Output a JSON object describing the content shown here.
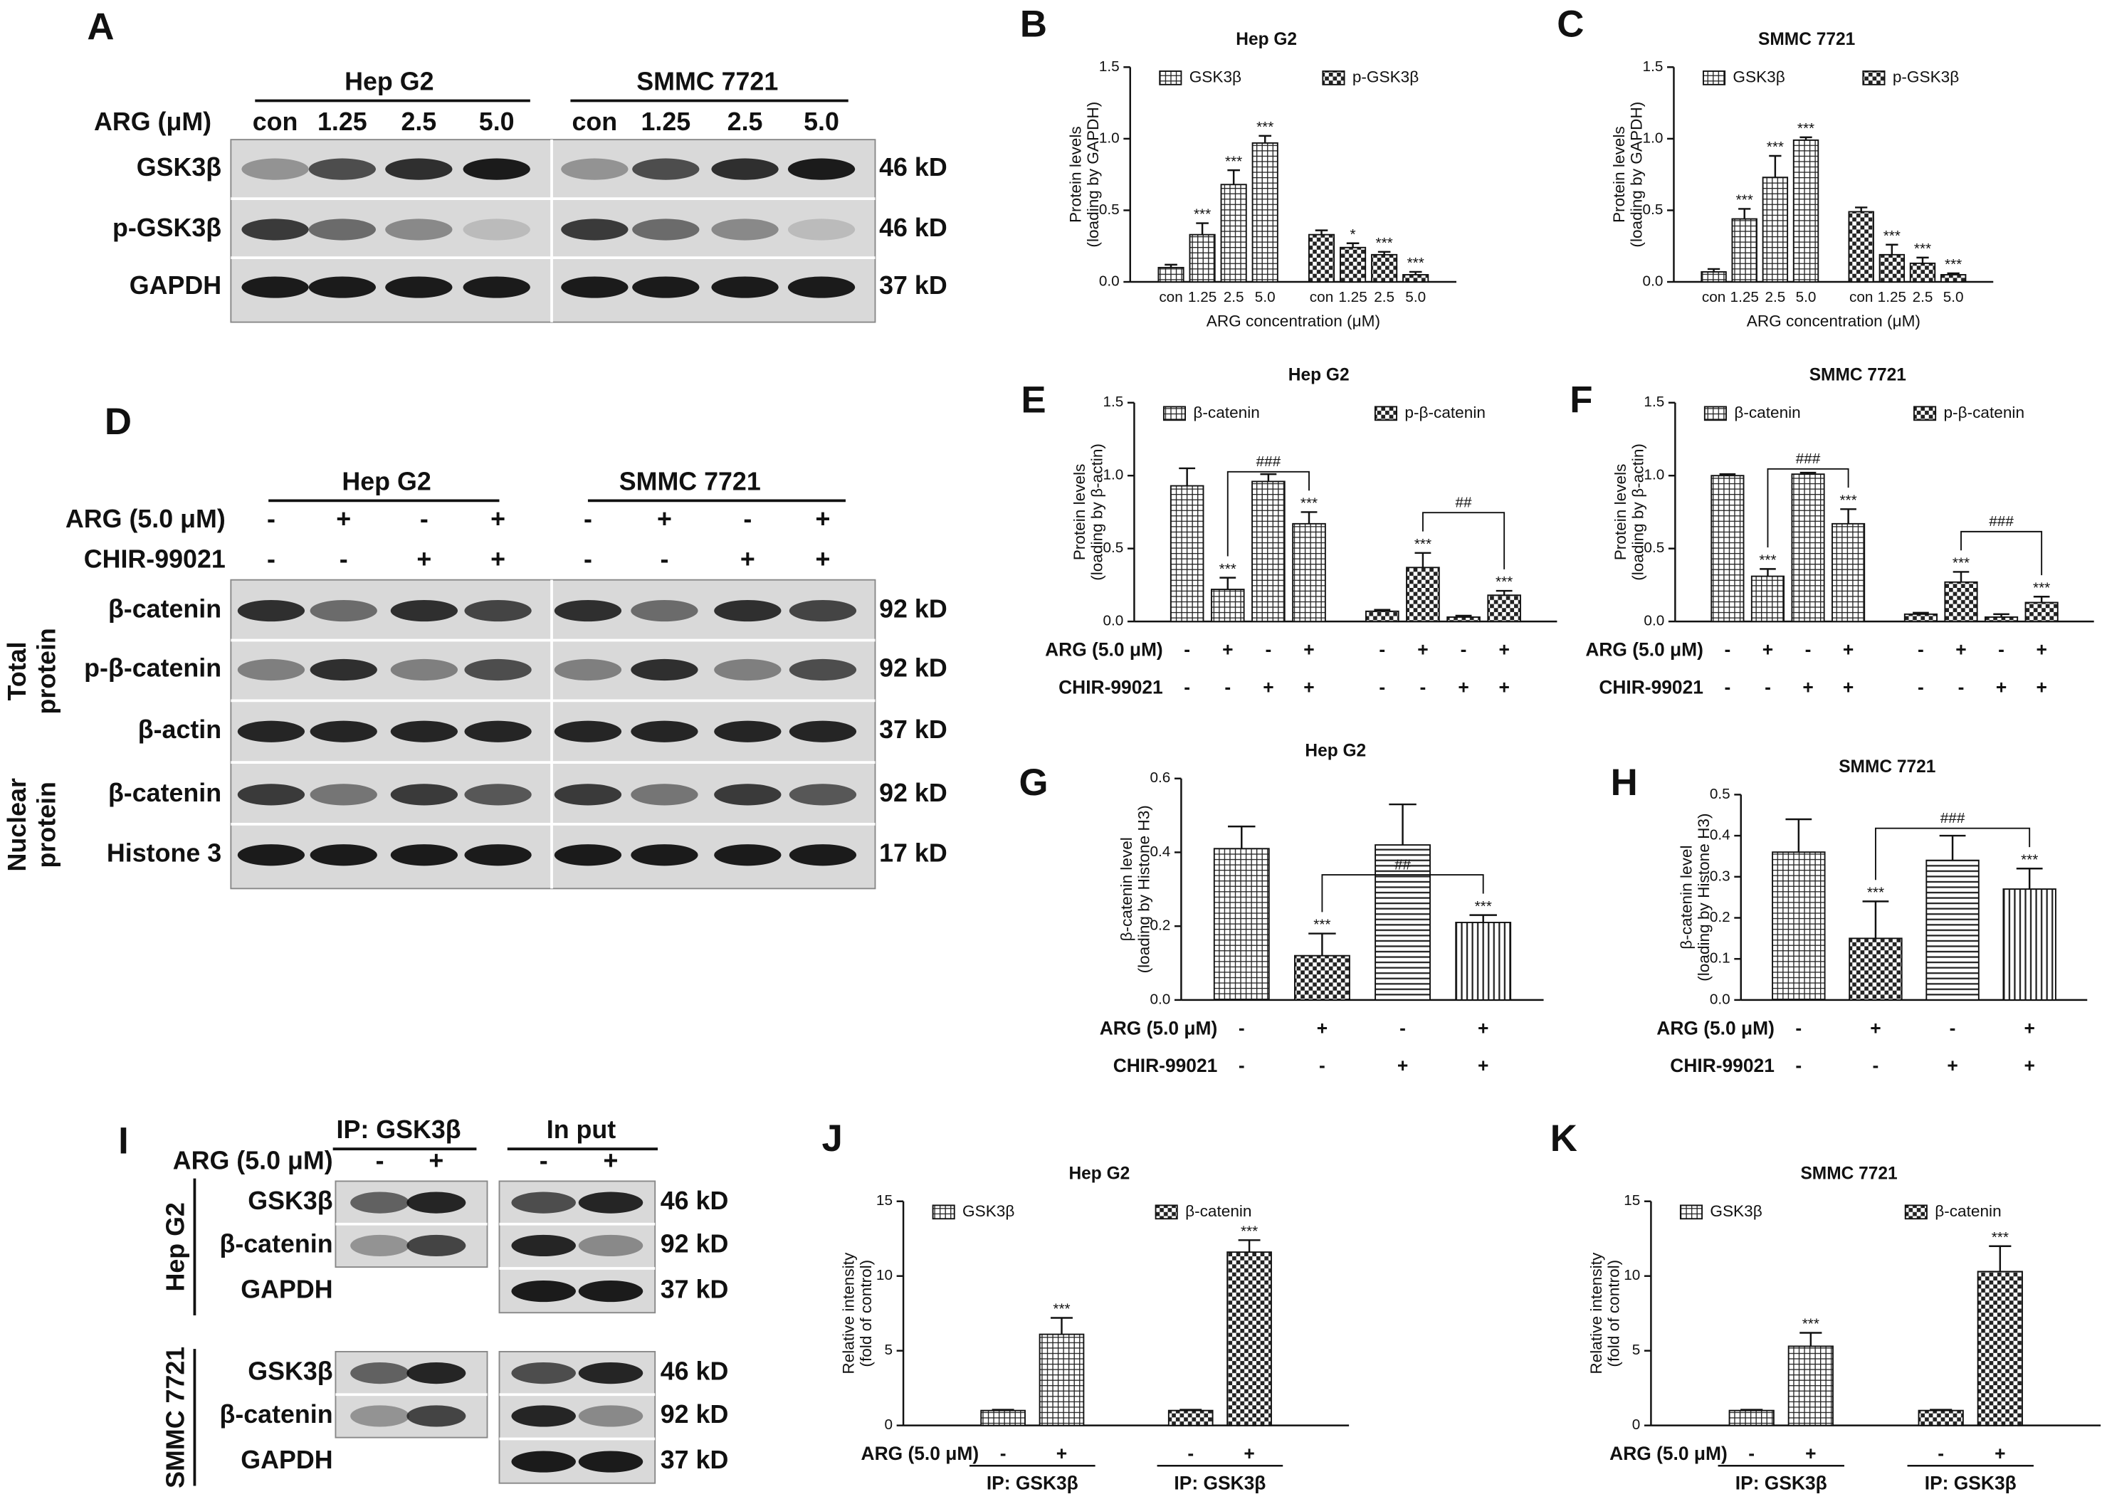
{
  "blots": {
    "A": {
      "panel": "A",
      "groups": [
        "Hep G2",
        "SMMC 7721"
      ],
      "dose_label": "ARG (μM)",
      "lanes": [
        "con",
        "1.25",
        "2.5",
        "5.0"
      ],
      "rows": [
        {
          "label": "GSK3β",
          "size": "46 kD"
        },
        {
          "label": "p-GSK3β",
          "size": "46 kD"
        },
        {
          "label": "GAPDH",
          "size": "37 kD"
        }
      ]
    },
    "D": {
      "panel": "D",
      "groups": [
        "Hep G2",
        "SMMC 7721"
      ],
      "conditions": [
        {
          "label": "ARG (5.0 μM)",
          "signs": [
            "-",
            "+",
            "-",
            "+"
          ]
        },
        {
          "label": "CHIR-99021",
          "signs": [
            "-",
            "-",
            "+",
            "+"
          ]
        }
      ],
      "sections": [
        {
          "label": [
            "Total",
            "protein"
          ],
          "rows": [
            {
              "label": "β-catenin",
              "size": "92 kD"
            },
            {
              "label": "p-β-catenin",
              "size": "92 kD"
            },
            {
              "label": "β-actin",
              "size": "37 kD"
            }
          ]
        },
        {
          "label": [
            "Nuclear",
            "protein"
          ],
          "rows": [
            {
              "label": "β-catenin",
              "size": "92 kD"
            },
            {
              "label": "Histone 3",
              "size": "17 kD"
            }
          ]
        }
      ]
    },
    "I": {
      "panel": "I",
      "groups": [
        "IP: GSK3β",
        "In put"
      ],
      "conditions": [
        {
          "label": "ARG (5.0 μM)",
          "signs": [
            "-",
            "+"
          ]
        }
      ],
      "cell_lines": [
        {
          "label": "Hep G2",
          "rows": [
            {
              "label": "GSK3β",
              "size": "46 kD"
            },
            {
              "label": "β-catenin",
              "size": "92 kD"
            },
            {
              "label": "GAPDH",
              "size": "37 kD"
            }
          ]
        },
        {
          "label": "SMMC 7721",
          "rows": [
            {
              "label": "GSK3β",
              "size": "46 kD"
            },
            {
              "label": "β-catenin",
              "size": "92 kD"
            },
            {
              "label": "GAPDH",
              "size": "37 kD"
            }
          ]
        }
      ]
    }
  },
  "chart_data": [
    {
      "type": "bar",
      "panel": "B",
      "title": "Hep G2",
      "ylabel": [
        "Protein levels",
        "(loading by GAPDH)"
      ],
      "xlabel": "ARG concentration (μM)",
      "grouping": "series",
      "legend": "top",
      "categories": [
        "con",
        "1.25",
        "2.5",
        "5.0"
      ],
      "ylim": [
        0,
        1.5
      ],
      "yticks": [
        {
          "value": 0,
          "label": "0.0"
        },
        0.5,
        {
          "value": 1,
          "label": "1.0"
        },
        1.5
      ],
      "series": [
        {
          "name": "GSK3β",
          "pattern": "grid",
          "values": [
            0.1,
            0.33,
            0.68,
            0.97
          ],
          "errors": [
            0.02,
            0.08,
            0.1,
            0.05
          ],
          "annotations": [
            null,
            "***",
            "***",
            "***"
          ]
        },
        {
          "name": "p-GSK3β",
          "pattern": "checker",
          "values": [
            0.33,
            0.24,
            0.19,
            0.05
          ],
          "errors": [
            0.03,
            0.03,
            0.02,
            0.02
          ],
          "annotations": [
            null,
            "*",
            "***",
            "***"
          ]
        }
      ]
    },
    {
      "type": "bar",
      "panel": "C",
      "title": "SMMC 7721",
      "ylabel": [
        "Protein levels",
        "(loading by GAPDH)"
      ],
      "xlabel": "ARG concentration (μM)",
      "grouping": "series",
      "legend": "top",
      "categories": [
        "con",
        "1.25",
        "2.5",
        "5.0"
      ],
      "ylim": [
        0,
        1.5
      ],
      "yticks": [
        {
          "value": 0,
          "label": "0.0"
        },
        0.5,
        {
          "value": 1,
          "label": "1.0"
        },
        1.5
      ],
      "series": [
        {
          "name": "GSK3β",
          "pattern": "grid",
          "values": [
            0.07,
            0.44,
            0.73,
            0.99
          ],
          "errors": [
            0.02,
            0.07,
            0.15,
            0.02
          ],
          "annotations": [
            null,
            "***",
            "***",
            "***"
          ]
        },
        {
          "name": "p-GSK3β",
          "pattern": "checker",
          "values": [
            0.49,
            0.19,
            0.13,
            0.05
          ],
          "errors": [
            0.03,
            0.07,
            0.04,
            0.01
          ],
          "annotations": [
            null,
            "***",
            "***",
            "***"
          ]
        }
      ]
    },
    {
      "type": "bar",
      "panel": "E",
      "title": "Hep G2",
      "ylabel": [
        "Protein levels",
        "(loading by β-actin)"
      ],
      "grouping": "series",
      "legend": "top",
      "conditions": [
        {
          "label": "ARG (5.0 μM)",
          "signs": [
            "-",
            "+",
            "-",
            "+"
          ]
        },
        {
          "label": "CHIR-99021",
          "signs": [
            "-",
            "-",
            "+",
            "+"
          ]
        }
      ],
      "ylim": [
        0,
        1.5
      ],
      "yticks": [
        {
          "value": 0,
          "label": "0.0"
        },
        0.5,
        {
          "value": 1,
          "label": "1.0"
        },
        1.5
      ],
      "series": [
        {
          "name": "β-catenin",
          "pattern": "grid",
          "values": [
            0.93,
            0.22,
            0.96,
            0.67
          ],
          "errors": [
            0.12,
            0.08,
            0.05,
            0.08
          ],
          "annotations": [
            null,
            "***",
            null,
            "***"
          ]
        },
        {
          "name": "p-β-catenin",
          "pattern": "checker",
          "values": [
            0.07,
            0.37,
            0.03,
            0.18
          ],
          "errors": [
            0.01,
            0.1,
            0.01,
            0.03
          ],
          "annotations": [
            null,
            "***",
            null,
            "***"
          ]
        }
      ],
      "brackets": [
        {
          "series": 0,
          "from": 1,
          "to": 3,
          "label": "###"
        },
        {
          "series": 1,
          "from": 1,
          "to": 3,
          "label": "##"
        }
      ]
    },
    {
      "type": "bar",
      "panel": "F",
      "title": "SMMC 7721",
      "ylabel": [
        "Protein levels",
        "(loading by β-actin)"
      ],
      "grouping": "series",
      "legend": "top",
      "conditions": [
        {
          "label": "ARG (5.0 μM)",
          "signs": [
            "-",
            "+",
            "-",
            "+"
          ]
        },
        {
          "label": "CHIR-99021",
          "signs": [
            "-",
            "-",
            "+",
            "+"
          ]
        }
      ],
      "ylim": [
        0,
        1.5
      ],
      "yticks": [
        {
          "value": 0,
          "label": "0.0"
        },
        0.5,
        {
          "value": 1,
          "label": "1.0"
        },
        1.5
      ],
      "series": [
        {
          "name": "β-catenin",
          "pattern": "grid",
          "values": [
            1.0,
            0.31,
            1.01,
            0.67
          ],
          "errors": [
            0.01,
            0.05,
            0.01,
            0.1
          ],
          "annotations": [
            null,
            "***",
            null,
            "***"
          ]
        },
        {
          "name": "p-β-catenin",
          "pattern": "checker",
          "values": [
            0.05,
            0.27,
            0.03,
            0.13
          ],
          "errors": [
            0.01,
            0.07,
            0.02,
            0.04
          ],
          "annotations": [
            null,
            "***",
            null,
            "***"
          ]
        }
      ],
      "brackets": [
        {
          "series": 0,
          "from": 1,
          "to": 3,
          "label": "###"
        },
        {
          "series": 1,
          "from": 1,
          "to": 3,
          "label": "###"
        }
      ]
    },
    {
      "type": "bar",
      "panel": "G",
      "title": "Hep G2",
      "ylabel": [
        "β-catenin level",
        "(loading by Histone H3)"
      ],
      "grouping": "single",
      "conditions": [
        {
          "label": "ARG (5.0 μM)",
          "signs": [
            "-",
            "+",
            "-",
            "+"
          ]
        },
        {
          "label": "CHIR-99021",
          "signs": [
            "-",
            "-",
            "+",
            "+"
          ]
        }
      ],
      "ylim": [
        0,
        0.6
      ],
      "yticks": [
        {
          "value": 0,
          "label": "0.0"
        },
        0.2,
        0.4,
        0.6
      ],
      "series": [
        {
          "patterns": [
            "grid",
            "checker",
            "hlines",
            "vlines"
          ],
          "values": [
            0.41,
            0.12,
            0.42,
            0.21
          ],
          "errors": [
            0.06,
            0.06,
            0.11,
            0.02
          ],
          "annotations": [
            null,
            "***",
            null,
            "***"
          ]
        }
      ],
      "brackets": [
        {
          "series": 0,
          "from": 1,
          "to": 3,
          "label": "##"
        }
      ]
    },
    {
      "type": "bar",
      "panel": "H",
      "title": "SMMC 7721",
      "ylabel": [
        "β-catenin level",
        "(loading by Histone H3)"
      ],
      "grouping": "single",
      "conditions": [
        {
          "label": "ARG (5.0 μM)",
          "signs": [
            "-",
            "+",
            "-",
            "+"
          ]
        },
        {
          "label": "CHIR-99021",
          "signs": [
            "-",
            "-",
            "+",
            "+"
          ]
        }
      ],
      "ylim": [
        0,
        0.5
      ],
      "yticks": [
        {
          "value": 0,
          "label": "0.0"
        },
        0.1,
        0.2,
        0.3,
        0.4,
        0.5
      ],
      "series": [
        {
          "patterns": [
            "grid",
            "checker",
            "hlines",
            "vlines"
          ],
          "values": [
            0.36,
            0.15,
            0.34,
            0.27
          ],
          "errors": [
            0.08,
            0.09,
            0.06,
            0.05
          ],
          "annotations": [
            null,
            "***",
            null,
            "***"
          ]
        }
      ],
      "brackets": [
        {
          "series": 0,
          "from": 1,
          "to": 3,
          "label": "###"
        }
      ]
    },
    {
      "type": "bar",
      "panel": "J",
      "title": "Hep G2",
      "ylabel": [
        "Relative intensity",
        "(fold of control)"
      ],
      "grouping": "series",
      "legend": "top",
      "conditions": [
        {
          "label": "ARG (5.0 μM)",
          "signs": [
            "-",
            "+"
          ]
        }
      ],
      "group_labels": [
        "IP: GSK3β",
        "IP: GSK3β"
      ],
      "ylim": [
        0,
        15
      ],
      "yticks": [
        0,
        5,
        10,
        15
      ],
      "series": [
        {
          "name": "GSK3β",
          "pattern": "grid",
          "values": [
            1,
            6.1
          ],
          "errors": [
            0.05,
            1.1
          ],
          "annotations": [
            null,
            "***"
          ]
        },
        {
          "name": "β-catenin",
          "pattern": "checker",
          "values": [
            1,
            11.6
          ],
          "errors": [
            0.05,
            0.8
          ],
          "annotations": [
            null,
            "***"
          ]
        }
      ]
    },
    {
      "type": "bar",
      "panel": "K",
      "title": "SMMC 7721",
      "ylabel": [
        "Relative intensity",
        "(fold of control)"
      ],
      "grouping": "series",
      "legend": "top",
      "conditions": [
        {
          "label": "ARG (5.0 μM)",
          "signs": [
            "-",
            "+"
          ]
        }
      ],
      "group_labels": [
        "IP: GSK3β",
        "IP: GSK3β"
      ],
      "ylim": [
        0,
        15
      ],
      "yticks": [
        0,
        5,
        10,
        15
      ],
      "series": [
        {
          "name": "GSK3β",
          "pattern": "grid",
          "values": [
            1,
            5.3
          ],
          "errors": [
            0.05,
            0.9
          ],
          "annotations": [
            null,
            "***"
          ]
        },
        {
          "name": "β-catenin",
          "pattern": "checker",
          "values": [
            1,
            10.3
          ],
          "errors": [
            0.05,
            1.7
          ],
          "annotations": [
            null,
            "***"
          ]
        }
      ]
    }
  ]
}
